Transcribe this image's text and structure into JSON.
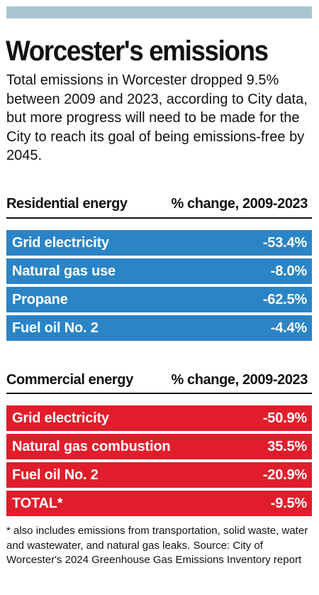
{
  "title": "Worcester's emissions",
  "intro": "Total emissions in Worcester dropped 9.5% between 2009 and 2023, according to City data, but more progress will need to be made for the City to reach its goal of being emissions-free by 2045.",
  "residential": {
    "heading": "Residential energy",
    "column": "% change, 2009-2023",
    "rows": [
      {
        "label": "Grid electricity",
        "value": "-53.4%"
      },
      {
        "label": "Natural gas use",
        "value": "-8.0%"
      },
      {
        "label": "Propane",
        "value": "-62.5%"
      },
      {
        "label": "Fuel oil No. 2",
        "value": "-4.4%"
      }
    ]
  },
  "commercial": {
    "heading": "Commercial energy",
    "column": "% change, 2009-2023",
    "rows": [
      {
        "label": "Grid electricity",
        "value": "-50.9%"
      },
      {
        "label": "Natural gas combustion",
        "value": "35.5%"
      },
      {
        "label": "Fuel oil No. 2",
        "value": "-20.9%"
      },
      {
        "label": "TOTAL*",
        "value": "-9.5%"
      }
    ]
  },
  "footnote": "* also includes emissions from transportation, solid waste, water and wastewater, and natural gas leaks. Source: City of Worcester's 2024 Greenhouse Gas Emissions Inventory report",
  "colors": {
    "residential_row": "#2a84c6",
    "commercial_row": "#e11d2b",
    "top_bar": "#a9c4d0"
  }
}
